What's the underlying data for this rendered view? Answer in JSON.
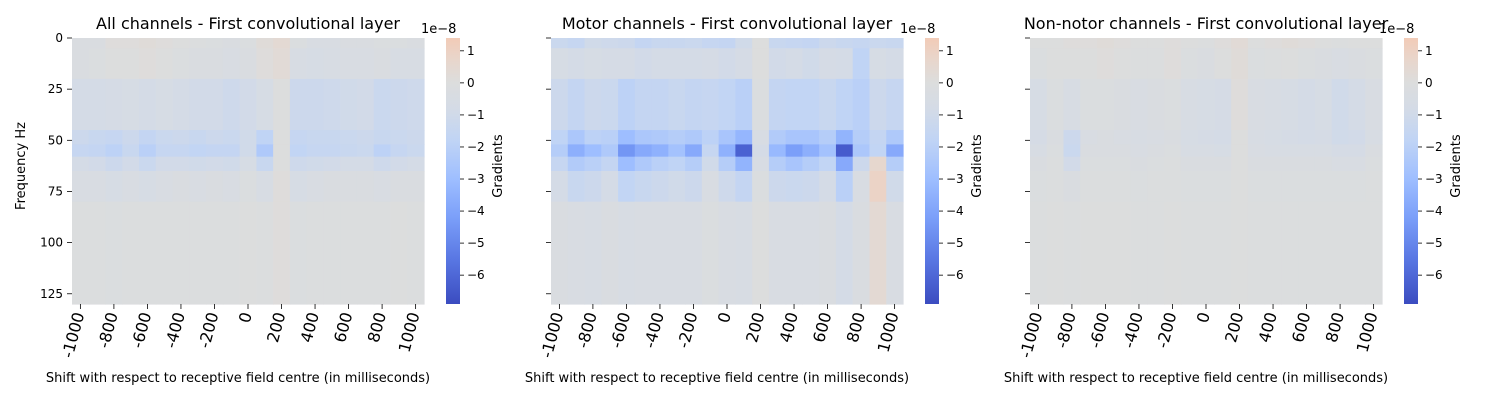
{
  "figure": {
    "xlabel": "Shift with respect to receptive field centre (in milliseconds)",
    "ylabel": "Frequency Hz",
    "colorbar_label": "Gradients",
    "colorbar_exponent": "1e−8"
  },
  "chart_data": [
    {
      "type": "heatmap",
      "title": "All channels - First convolutional layer",
      "x_ticks": [
        "-1000",
        "-800",
        "-600",
        "-400",
        "-200",
        "0",
        "200",
        "400",
        "600",
        "800",
        "1000"
      ],
      "y_ticks": [
        "0",
        "25",
        "50",
        "75",
        "100",
        "125"
      ],
      "ylim": [
        0,
        130
      ],
      "x_columns": [
        -1000,
        -900,
        -800,
        -700,
        -600,
        -500,
        -400,
        -300,
        -200,
        -100,
        0,
        100,
        200,
        300,
        400,
        500,
        600,
        700,
        800,
        900,
        1000
      ],
      "y_bands": [
        [
          0,
          5
        ],
        [
          5,
          20
        ],
        [
          20,
          45
        ],
        [
          45,
          52
        ],
        [
          52,
          58
        ],
        [
          58,
          65
        ],
        [
          65,
          80
        ],
        [
          80,
          130
        ]
      ],
      "values_1e8": [
        [
          -0.3,
          -0.3,
          0.1,
          0.1,
          0.2,
          0.1,
          0.0,
          -0.1,
          -0.2,
          -0.3,
          -0.2,
          0.2,
          0.4,
          -0.2,
          -0.4,
          -0.4,
          -0.3,
          -0.3,
          -0.2,
          -0.2,
          -0.3
        ],
        [
          -0.3,
          -0.2,
          0.0,
          0.0,
          0.1,
          0.0,
          -0.2,
          -0.3,
          -0.3,
          -0.4,
          -0.3,
          0.1,
          0.3,
          -0.5,
          -0.6,
          -0.5,
          -0.4,
          -0.4,
          -0.3,
          -0.5,
          -0.5
        ],
        [
          -0.8,
          -0.8,
          -0.7,
          -0.6,
          -0.8,
          -0.6,
          -0.8,
          -0.9,
          -0.9,
          -1.1,
          -0.9,
          -0.6,
          0.0,
          -1.2,
          -1.2,
          -1.1,
          -1.0,
          -0.9,
          -1.3,
          -1.2,
          -1.1
        ],
        [
          -1.2,
          -1.4,
          -1.5,
          -1.2,
          -1.6,
          -1.3,
          -1.2,
          -1.4,
          -1.2,
          -1.3,
          -1.0,
          -1.8,
          0.0,
          -1.5,
          -1.4,
          -1.4,
          -1.3,
          -1.2,
          -1.4,
          -1.3,
          -1.2
        ],
        [
          -1.5,
          -1.6,
          -1.9,
          -1.4,
          -2.0,
          -1.5,
          -1.5,
          -1.7,
          -1.6,
          -1.6,
          -1.0,
          -2.4,
          0.0,
          -1.7,
          -1.5,
          -1.5,
          -1.4,
          -1.3,
          -1.9,
          -1.5,
          -1.3
        ],
        [
          -0.8,
          -0.9,
          -1.2,
          -0.9,
          -1.3,
          -0.9,
          -0.9,
          -1.0,
          -0.9,
          -1.0,
          -0.6,
          -1.4,
          0.0,
          -1.1,
          -1.0,
          -0.9,
          -0.8,
          -0.8,
          -1.1,
          -0.9,
          -0.8
        ],
        [
          -0.4,
          -0.4,
          -0.6,
          -0.4,
          -0.6,
          -0.4,
          -0.3,
          -0.4,
          -0.3,
          -0.4,
          -0.2,
          -0.5,
          0.1,
          -0.6,
          -0.4,
          -0.3,
          -0.3,
          -0.3,
          -0.4,
          -0.3,
          -0.3
        ],
        [
          -0.1,
          -0.1,
          -0.2,
          -0.1,
          -0.1,
          -0.1,
          -0.1,
          -0.1,
          -0.1,
          -0.1,
          0.0,
          -0.1,
          0.1,
          -0.2,
          -0.1,
          -0.1,
          -0.1,
          -0.1,
          -0.1,
          0.0,
          -0.1
        ]
      ]
    },
    {
      "type": "heatmap",
      "title": "Motor channels - First convolutional layer",
      "x_ticks": [
        "-1000",
        "-800",
        "-600",
        "-400",
        "-200",
        "0",
        "200",
        "400",
        "600",
        "800",
        "1000"
      ],
      "y_ticks": [
        "0",
        "25",
        "50",
        "75",
        "100",
        "125"
      ],
      "ylim": [
        0,
        130
      ],
      "x_columns": [
        -1000,
        -900,
        -800,
        -700,
        -600,
        -500,
        -400,
        -300,
        -200,
        -100,
        0,
        100,
        200,
        300,
        400,
        500,
        600,
        700,
        800,
        900,
        1000
      ],
      "y_bands": [
        [
          0,
          5
        ],
        [
          5,
          20
        ],
        [
          20,
          45
        ],
        [
          45,
          52
        ],
        [
          52,
          58
        ],
        [
          58,
          65
        ],
        [
          65,
          80
        ],
        [
          80,
          130
        ]
      ],
      "values_1e8": [
        [
          -1.3,
          -1.5,
          -1.0,
          -1.1,
          -1.2,
          -1.6,
          -1.4,
          -1.4,
          -1.3,
          -1.5,
          -1.6,
          -1.0,
          0.0,
          -1.4,
          -1.5,
          -1.6,
          -1.2,
          -1.4,
          -1.5,
          -1.3,
          -1.4
        ],
        [
          -0.6,
          -0.8,
          -0.6,
          -0.7,
          -0.7,
          -0.9,
          -0.8,
          -0.8,
          -0.8,
          -0.7,
          -0.9,
          -0.7,
          0.0,
          -0.9,
          -0.8,
          -1.0,
          -0.7,
          -0.8,
          -1.8,
          -0.6,
          -0.8
        ],
        [
          -1.2,
          -1.6,
          -1.2,
          -1.3,
          -1.9,
          -1.6,
          -1.6,
          -1.4,
          -1.6,
          -1.5,
          -1.7,
          -2.0,
          -0.2,
          -1.6,
          -1.7,
          -1.7,
          -1.4,
          -1.8,
          -2.0,
          -1.2,
          -1.5
        ],
        [
          -1.8,
          -2.5,
          -1.9,
          -2.0,
          -3.0,
          -2.5,
          -2.4,
          -2.2,
          -2.4,
          -1.9,
          -2.6,
          -3.3,
          -0.5,
          -2.3,
          -2.6,
          -2.6,
          -2.2,
          -3.4,
          -2.2,
          -1.6,
          -2.4
        ],
        [
          -2.2,
          -3.6,
          -3.0,
          -2.4,
          -4.5,
          -3.8,
          -3.5,
          -2.8,
          -3.8,
          -1.5,
          -3.5,
          -6.2,
          -0.8,
          -3.2,
          -4.2,
          -3.6,
          -2.8,
          -6.4,
          -2.5,
          -1.7,
          -3.8
        ],
        [
          -1.5,
          -2.3,
          -2.0,
          -1.6,
          -3.0,
          -2.4,
          -2.0,
          -1.8,
          -2.2,
          -1.0,
          -2.2,
          -3.4,
          -0.5,
          -2.2,
          -2.6,
          -2.2,
          -1.7,
          -3.8,
          -1.2,
          0.6,
          -2.2
        ],
        [
          -0.8,
          -1.4,
          -1.2,
          -0.8,
          -1.7,
          -1.4,
          -1.2,
          -1.0,
          -1.2,
          -0.4,
          -1.1,
          -1.6,
          -0.2,
          -1.2,
          -1.3,
          -1.2,
          -0.8,
          -2.0,
          -0.4,
          0.9,
          -1.0
        ],
        [
          -0.3,
          -0.4,
          -0.5,
          -0.3,
          -0.5,
          -0.4,
          -0.4,
          -0.4,
          -0.4,
          -0.2,
          -0.4,
          -0.5,
          0.0,
          -0.4,
          -0.4,
          -0.4,
          -0.3,
          -0.8,
          -0.3,
          0.4,
          -0.4
        ]
      ]
    },
    {
      "type": "heatmap",
      "title": "Non-notor channels - First convolutional layer",
      "x_ticks": [
        "-1000",
        "-800",
        "-600",
        "-400",
        "-200",
        "0",
        "200",
        "400",
        "600",
        "800",
        "1000"
      ],
      "y_ticks": [
        "0",
        "25",
        "50",
        "75",
        "100",
        "125"
      ],
      "ylim": [
        0,
        130
      ],
      "x_columns": [
        -1000,
        -900,
        -800,
        -700,
        -600,
        -500,
        -400,
        -300,
        -200,
        -100,
        0,
        100,
        200,
        300,
        400,
        500,
        600,
        700,
        800,
        900,
        1000
      ],
      "y_bands": [
        [
          0,
          5
        ],
        [
          5,
          20
        ],
        [
          20,
          45
        ],
        [
          45,
          52
        ],
        [
          52,
          58
        ],
        [
          58,
          65
        ],
        [
          65,
          80
        ],
        [
          80,
          130
        ]
      ],
      "values_1e8": [
        [
          0.0,
          0.0,
          0.1,
          0.1,
          0.2,
          0.1,
          0.0,
          0.0,
          0.1,
          0.0,
          -0.1,
          0.1,
          0.3,
          0.0,
          0.1,
          0.2,
          0.1,
          0.0,
          -0.1,
          0.0,
          0.0
        ],
        [
          -0.2,
          0.0,
          0.0,
          0.0,
          0.1,
          0.0,
          -0.1,
          -0.1,
          0.1,
          -0.2,
          -0.3,
          0.0,
          0.2,
          -0.2,
          -0.1,
          0.0,
          -0.2,
          -0.3,
          -0.4,
          -0.3,
          -0.2
        ],
        [
          -0.6,
          -0.2,
          -0.5,
          -0.2,
          -0.2,
          -0.3,
          -0.4,
          -0.3,
          -0.2,
          -0.5,
          -0.6,
          -0.7,
          0.1,
          -0.4,
          -0.5,
          -0.6,
          -0.8,
          -0.6,
          -1.0,
          -0.8,
          -0.4
        ],
        [
          -0.7,
          -0.3,
          -1.2,
          -0.4,
          -0.3,
          -0.4,
          -0.5,
          -0.4,
          -0.3,
          -0.6,
          -0.7,
          -0.8,
          0.0,
          -0.5,
          -0.6,
          -0.7,
          -0.8,
          -0.7,
          -1.0,
          -0.9,
          -0.5
        ],
        [
          -0.5,
          -0.2,
          -1.3,
          -0.3,
          -0.3,
          -0.3,
          -0.4,
          -0.3,
          -0.2,
          -0.5,
          -0.5,
          -0.6,
          0.0,
          -0.4,
          -0.5,
          -0.5,
          -0.5,
          -0.5,
          -0.7,
          -0.7,
          -0.3
        ],
        [
          -0.3,
          -0.1,
          -0.9,
          -0.2,
          -0.2,
          -0.2,
          -0.3,
          -0.2,
          -0.1,
          -0.3,
          -0.3,
          -0.3,
          0.0,
          -0.3,
          -0.3,
          -0.3,
          -0.3,
          -0.3,
          -0.4,
          -0.4,
          -0.2
        ],
        [
          -0.2,
          -0.1,
          -0.3,
          -0.1,
          -0.1,
          -0.1,
          -0.2,
          -0.1,
          -0.1,
          -0.2,
          -0.2,
          -0.2,
          0.0,
          -0.2,
          -0.2,
          -0.2,
          -0.2,
          -0.2,
          -0.2,
          -0.2,
          -0.1
        ],
        [
          -0.1,
          0.0,
          -0.1,
          0.0,
          0.0,
          0.0,
          -0.1,
          -0.1,
          0.0,
          -0.1,
          -0.1,
          -0.1,
          0.0,
          -0.1,
          -0.1,
          -0.1,
          -0.1,
          -0.1,
          -0.1,
          -0.1,
          -0.1
        ]
      ]
    }
  ],
  "colorbar": {
    "vmin": -6.9,
    "vmax": 1.4,
    "ticks": [
      1,
      0,
      -1,
      -2,
      -3,
      -4,
      -5,
      -6
    ],
    "tick_labels": [
      "1",
      "0",
      "−1",
      "−2",
      "−3",
      "−4",
      "−5",
      "−6"
    ],
    "colormap": "coolwarm",
    "stops": [
      [
        -6.9,
        "#3b4cc0"
      ],
      [
        -5.5,
        "#5977e3"
      ],
      [
        -4.2,
        "#7b9ff9"
      ],
      [
        -3.0,
        "#9ebeff"
      ],
      [
        -1.8,
        "#c0d4f5"
      ],
      [
        -0.8,
        "#d4dbe6"
      ],
      [
        0.0,
        "#dcdddd"
      ],
      [
        0.7,
        "#e8d6cc"
      ],
      [
        1.4,
        "#f2cbb7"
      ]
    ]
  }
}
